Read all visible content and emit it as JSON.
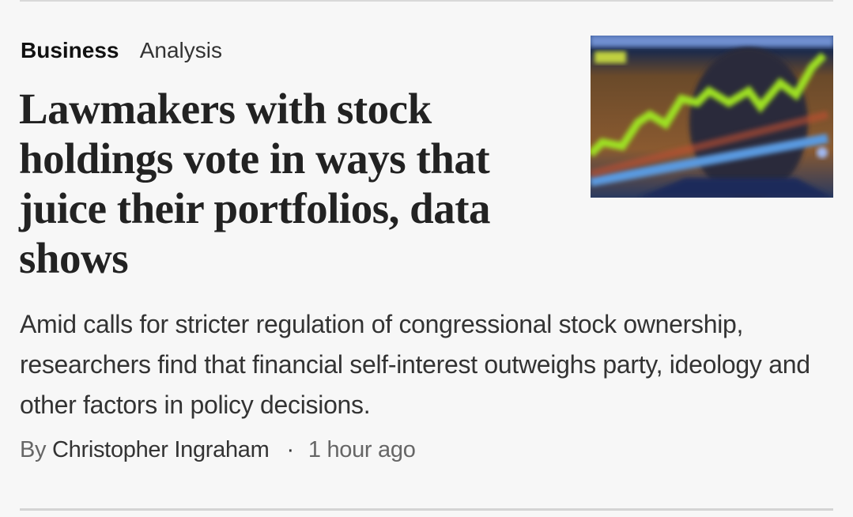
{
  "article": {
    "section": "Business",
    "label": "Analysis",
    "headline": "Lawmakers with stock holdings vote in ways that juice their portfolios, data shows",
    "dek": "Amid calls for stricter regulation of congressional stock ownership, researchers find that financial self-interest outweighs party, ideology and other factors in policy decisions.",
    "byline_prefix": "By",
    "author": "Christopher Ingraham",
    "separator": "·",
    "timestamp": "1 hour ago"
  }
}
